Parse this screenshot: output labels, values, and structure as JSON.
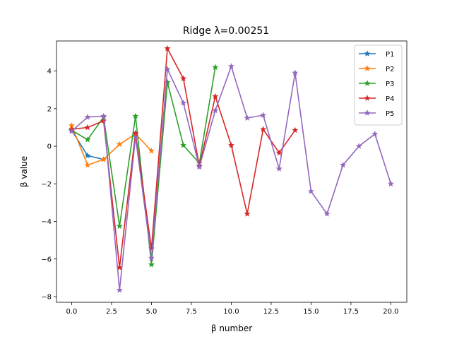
{
  "chart_data": {
    "type": "line",
    "title": "Ridge λ=0.00251",
    "xlabel": "β number",
    "ylabel": "β value",
    "xlim": [
      -0.95,
      21.0
    ],
    "ylim": [
      -8.3,
      5.6
    ],
    "xticks": [
      0.0,
      2.5,
      5.0,
      7.5,
      10.0,
      12.5,
      15.0,
      17.5,
      20.0
    ],
    "xtick_labels": [
      "0.0",
      "2.5",
      "5.0",
      "7.5",
      "10.0",
      "12.5",
      "15.0",
      "17.5",
      "20.0"
    ],
    "yticks": [
      -8,
      -6,
      -4,
      -2,
      0,
      2,
      4
    ],
    "ytick_labels": [
      "−8",
      "−6",
      "−4",
      "−2",
      "0",
      "2",
      "4"
    ],
    "grid": false,
    "legend_position": "top-right",
    "marker": "star",
    "series": [
      {
        "name": "P1",
        "color": "#1f77b4",
        "x": [
          0,
          1,
          2
        ],
        "values": [
          0.85,
          -0.5,
          -0.7
        ]
      },
      {
        "name": "P2",
        "color": "#ff7f0e",
        "x": [
          0,
          1,
          2,
          3,
          4,
          5
        ],
        "values": [
          1.1,
          -1.0,
          -0.7,
          0.1,
          0.65,
          -0.25
        ]
      },
      {
        "name": "P3",
        "color": "#2ca02c",
        "x": [
          0,
          1,
          2,
          3,
          4,
          5,
          6,
          7,
          8,
          9
        ],
        "values": [
          0.85,
          0.35,
          1.55,
          -4.25,
          1.6,
          -6.3,
          3.4,
          0.05,
          -0.9,
          4.2
        ]
      },
      {
        "name": "P4",
        "color": "#d62728",
        "x": [
          0,
          1,
          2,
          3,
          4,
          5,
          6,
          7,
          8,
          9,
          10,
          11,
          12,
          13,
          14
        ],
        "values": [
          0.9,
          1.0,
          1.35,
          -6.45,
          0.7,
          -5.45,
          5.2,
          3.6,
          -1.05,
          2.65,
          0.05,
          -3.6,
          0.9,
          -0.35,
          0.85
        ]
      },
      {
        "name": "P5",
        "color": "#9467bd",
        "x": [
          0,
          1,
          2,
          3,
          4,
          5,
          6,
          7,
          8,
          9,
          10,
          11,
          12,
          13,
          14,
          15,
          16,
          17,
          18,
          19,
          20
        ],
        "values": [
          0.8,
          1.55,
          1.6,
          -7.65,
          0.5,
          -5.95,
          4.1,
          2.3,
          -1.1,
          1.9,
          4.25,
          1.5,
          1.65,
          -1.2,
          3.9,
          -2.4,
          -3.6,
          -1.0,
          0.0,
          0.65,
          -2.0
        ]
      }
    ]
  }
}
